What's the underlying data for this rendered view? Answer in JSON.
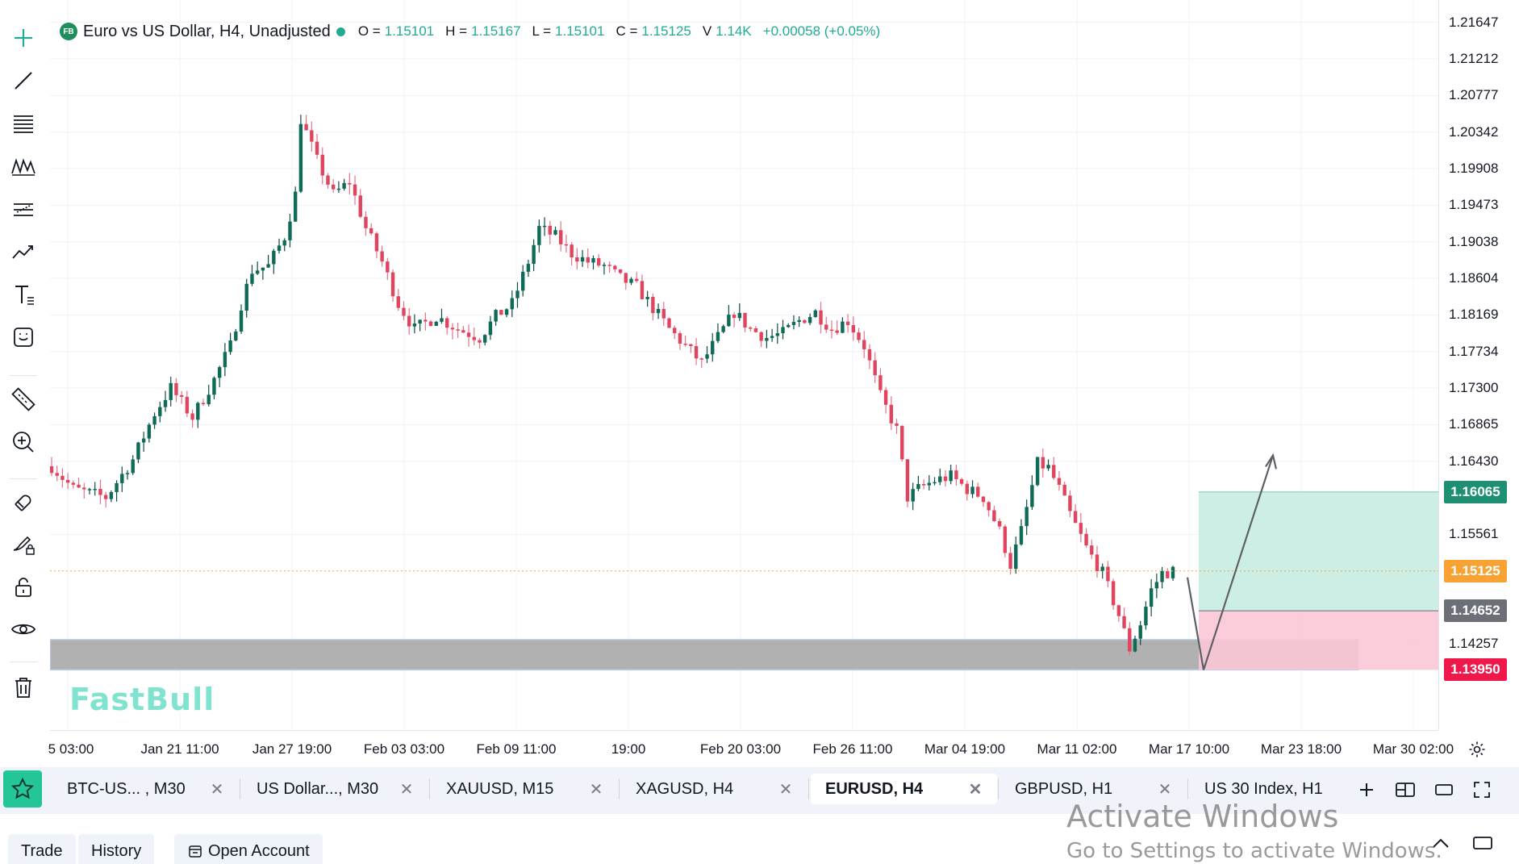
{
  "toolbar": {
    "tools": [
      {
        "name": "crosshair-icon"
      },
      {
        "name": "trend-line-icon"
      },
      {
        "name": "fib-lines-icon"
      },
      {
        "name": "pattern-icon"
      },
      {
        "name": "channel-icon"
      },
      {
        "name": "forecast-icon"
      },
      {
        "name": "text-icon"
      },
      {
        "name": "emoji-icon"
      },
      {
        "name": "ruler-icon"
      },
      {
        "name": "zoom-in-icon"
      },
      {
        "name": "magnet-icon"
      },
      {
        "name": "brush-lock-icon"
      },
      {
        "name": "lock-icon"
      },
      {
        "name": "eye-icon"
      },
      {
        "name": "trash-icon"
      }
    ]
  },
  "legend": {
    "badge": "FB",
    "title": "Euro vs US Dollar, H4, Unadjusted",
    "open_label": "O =",
    "open": "1.15101",
    "high_label": "H =",
    "high": "1.15167",
    "low_label": "L =",
    "low": "1.15101",
    "close_label": "C =",
    "close": "1.15125",
    "volume_label": "V",
    "volume": "1.14K",
    "change": "+0.00058 (+0.05%)",
    "status_color": "#22ab94"
  },
  "watermark": "FastBull",
  "chart_data": {
    "type": "candlestick",
    "symbol": "EURUSD",
    "timeframe": "H4",
    "y_ticks": [
      "1.21647",
      "1.21212",
      "1.20777",
      "1.20342",
      "1.19908",
      "1.19473",
      "1.19038",
      "1.18604",
      "1.18169",
      "1.17734",
      "1.17300",
      "1.16865",
      "1.16430",
      "1.15561",
      "1.14257"
    ],
    "x_ticks": [
      "5 03:00",
      "Jan 21 11:00",
      "Jan 27 19:00",
      "Feb 03 03:00",
      "Feb 09 11:00",
      "19:00",
      "Feb 20 03:00",
      "Feb 26 11:00",
      "Mar 04 19:00",
      "Mar 11 02:00",
      "Mar 17 10:00",
      "Mar 23 18:00",
      "Mar 30 02:00"
    ],
    "ylim": [
      1.138,
      1.2172
    ],
    "path_points": [
      [
        0,
        1.1637
      ],
      [
        4,
        1.161
      ],
      [
        10,
        1.16
      ],
      [
        15,
        1.1645
      ],
      [
        19,
        1.17
      ],
      [
        22,
        1.173
      ],
      [
        26,
        1.1695
      ],
      [
        30,
        1.174
      ],
      [
        33,
        1.178
      ],
      [
        35,
        1.183
      ],
      [
        37,
        1.187
      ],
      [
        40,
        1.1875
      ],
      [
        43,
        1.191
      ],
      [
        45,
        1.196
      ],
      [
        46,
        1.205
      ],
      [
        49,
        1.2
      ],
      [
        52,
        1.196
      ],
      [
        55,
        1.1975
      ],
      [
        58,
        1.192
      ],
      [
        61,
        1.188
      ],
      [
        64,
        1.183
      ],
      [
        67,
        1.18
      ],
      [
        71,
        1.1815
      ],
      [
        75,
        1.18
      ],
      [
        79,
        1.179
      ],
      [
        82,
        1.1815
      ],
      [
        85,
        1.183
      ],
      [
        88,
        1.188
      ],
      [
        90,
        1.192
      ],
      [
        93,
        1.191
      ],
      [
        96,
        1.189
      ],
      [
        99,
        1.188
      ],
      [
        102,
        1.1875
      ],
      [
        105,
        1.186
      ],
      [
        108,
        1.185
      ],
      [
        111,
        1.1825
      ],
      [
        114,
        1.18
      ],
      [
        117,
        1.178
      ],
      [
        120,
        1.176
      ],
      [
        123,
        1.179
      ],
      [
        126,
        1.182
      ],
      [
        129,
        1.18
      ],
      [
        132,
        1.179
      ],
      [
        135,
        1.1795
      ],
      [
        138,
        1.181
      ],
      [
        141,
        1.182
      ],
      [
        144,
        1.18
      ],
      [
        147,
        1.181
      ],
      [
        150,
        1.178
      ],
      [
        153,
        1.172
      ],
      [
        156,
        1.168
      ],
      [
        158,
        1.16
      ],
      [
        160,
        1.161
      ],
      [
        163,
        1.162
      ],
      [
        166,
        1.1625
      ],
      [
        169,
        1.161
      ],
      [
        172,
        1.16
      ],
      [
        175,
        1.156
      ],
      [
        177,
        1.152
      ],
      [
        179,
        1.156
      ],
      [
        182,
        1.164
      ],
      [
        184,
        1.1635
      ],
      [
        186,
        1.161
      ],
      [
        188,
        1.158
      ],
      [
        191,
        1.154
      ],
      [
        194,
        1.151
      ],
      [
        197,
        1.146
      ],
      [
        199,
        1.142
      ],
      [
        201,
        1.145
      ],
      [
        203,
        1.149
      ],
      [
        205,
        1.151
      ],
      [
        207,
        1.1512
      ]
    ],
    "current_price": "1.15125",
    "current_price_color": "#f7a233",
    "position": {
      "take_profit": "1.16065",
      "entry": "1.14652",
      "stop_loss": "1.13950",
      "take_profit_color": "#1e8f72",
      "entry_color": "#6c6f76",
      "stop_loss_color": "#f0184a"
    },
    "zone": {
      "top": 1.1431,
      "bottom": 1.1395
    },
    "forecast_arrow": {
      "points": [
        [
          1.1505
        ],
        [
          1.1395
        ],
        [
          1.165
        ]
      ]
    },
    "grid": true
  },
  "tabs": [
    {
      "label": "BTC-US...   , M30",
      "active": false
    },
    {
      "label": "US Dollar..., M30",
      "active": false
    },
    {
      "label": "XAUUSD, M15",
      "active": false
    },
    {
      "label": "XAGUSD, H4",
      "active": false
    },
    {
      "label": "EURUSD, H4",
      "active": true
    },
    {
      "label": "GBPUSD, H1",
      "active": false
    },
    {
      "label": "US 30 Index, H1",
      "active": false
    }
  ],
  "tab_close_glyph": "✕",
  "bottom": {
    "trade": "Trade",
    "history": "History",
    "open_account": "Open Account"
  },
  "os_overlay": {
    "title": "Activate Windows",
    "subtitle": "Go to Settings to activate Windows."
  }
}
